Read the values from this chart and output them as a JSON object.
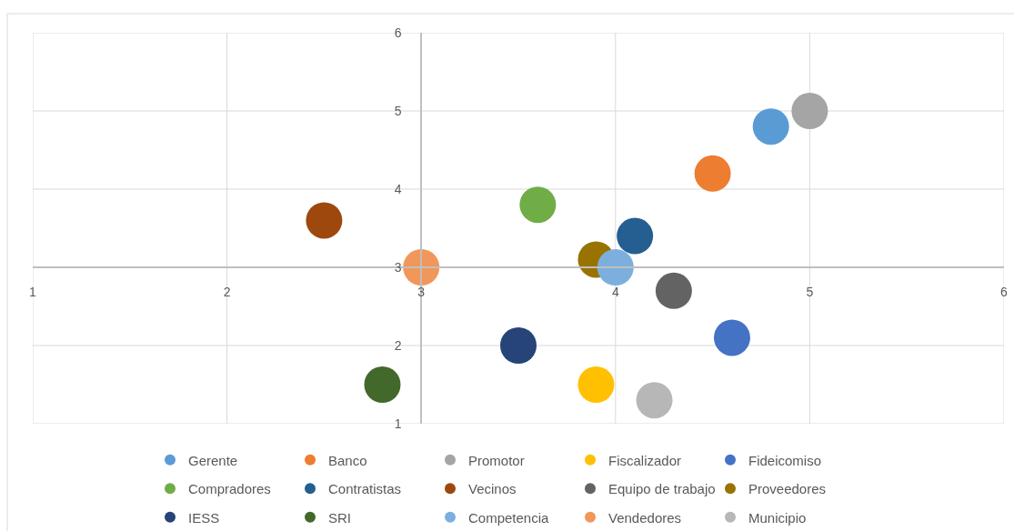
{
  "chart_data": {
    "type": "scatter",
    "xlim": [
      1,
      6
    ],
    "ylim": [
      1,
      6
    ],
    "xticks": [
      1,
      2,
      3,
      4,
      5,
      6
    ],
    "yticks": [
      1,
      2,
      3,
      4,
      5,
      6
    ],
    "grid": true,
    "legend": "bottom",
    "marker": "circle",
    "series": [
      {
        "name": "Gerente",
        "color": "#5b9bd5",
        "x": [
          4.8
        ],
        "values": [
          4.8
        ]
      },
      {
        "name": "Banco",
        "color": "#ed7d31",
        "x": [
          4.5
        ],
        "values": [
          4.2
        ]
      },
      {
        "name": "Promotor",
        "color": "#a5a5a5",
        "x": [
          5
        ],
        "values": [
          5
        ]
      },
      {
        "name": "Fiscalizador",
        "color": "#ffc000",
        "x": [
          3.9
        ],
        "values": [
          1.5
        ]
      },
      {
        "name": "Fideicomiso",
        "color": "#4472c4",
        "x": [
          4.6
        ],
        "values": [
          2.1
        ]
      },
      {
        "name": "Compradores",
        "color": "#70ad47",
        "x": [
          3.6
        ],
        "values": [
          3.8
        ]
      },
      {
        "name": "Contratistas",
        "color": "#255e91",
        "x": [
          4.1
        ],
        "values": [
          3.4
        ]
      },
      {
        "name": "Vecinos",
        "color": "#9e480e",
        "x": [
          2.5
        ],
        "values": [
          3.6
        ]
      },
      {
        "name": "Equipo de trabajo",
        "color": "#636363",
        "x": [
          4.3
        ],
        "values": [
          2.7
        ]
      },
      {
        "name": "Proveedores",
        "color": "#997300",
        "x": [
          3.9
        ],
        "values": [
          3.1
        ]
      },
      {
        "name": "IESS",
        "color": "#264478",
        "x": [
          3.5
        ],
        "values": [
          2
        ]
      },
      {
        "name": "SRI",
        "color": "#43682b",
        "x": [
          2.8
        ],
        "values": [
          1.5
        ]
      },
      {
        "name": "Competencia",
        "color": "#7cafdd",
        "x": [
          4
        ],
        "values": [
          3
        ]
      },
      {
        "name": "Vendedores",
        "color": "#f1975a",
        "x": [
          3
        ],
        "values": [
          3
        ]
      },
      {
        "name": "Municipio",
        "color": "#b7b7b7",
        "x": [
          4.2
        ],
        "values": [
          1.3
        ]
      }
    ]
  }
}
